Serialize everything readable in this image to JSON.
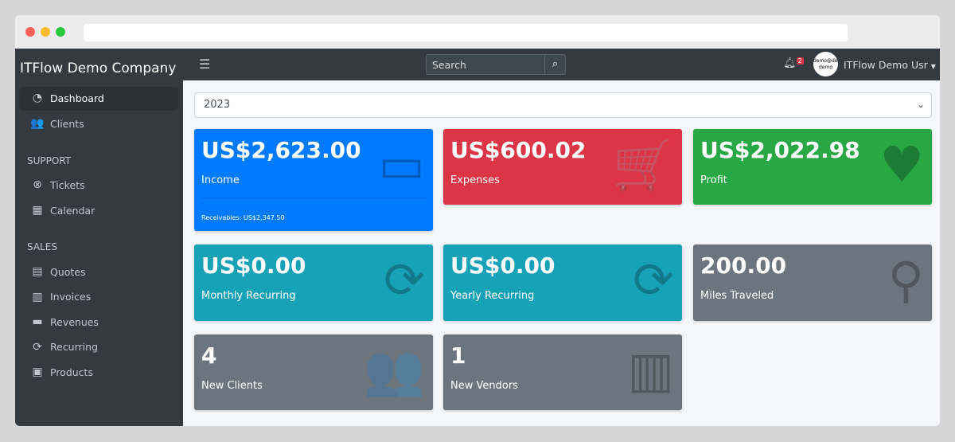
{
  "sidebar": {
    "brand": "ITFlow Demo Company",
    "items": [
      {
        "label": "Dashboard",
        "icon": "tachometer-icon",
        "glyph": "◔"
      },
      {
        "label": "Clients",
        "icon": "users-icon",
        "glyph": "👥"
      }
    ],
    "support_header": "SUPPORT",
    "support": [
      {
        "label": "Tickets",
        "icon": "life-ring-icon",
        "glyph": "⊗"
      },
      {
        "label": "Calendar",
        "icon": "calendar-icon",
        "glyph": "▦"
      }
    ],
    "sales_header": "SALES",
    "sales": [
      {
        "label": "Quotes",
        "icon": "file-icon",
        "glyph": "▤"
      },
      {
        "label": "Invoices",
        "icon": "invoice-icon",
        "glyph": "▥"
      },
      {
        "label": "Revenues",
        "icon": "credit-card-icon",
        "glyph": "▬"
      },
      {
        "label": "Recurring",
        "icon": "sync-icon",
        "glyph": "⟳"
      },
      {
        "label": "Products",
        "icon": "box-icon",
        "glyph": "▣"
      }
    ]
  },
  "topbar": {
    "search_placeholder": "Search",
    "notifications": "2",
    "avatar_text": "demo@demo demo",
    "user": "ITFlow Demo Usr"
  },
  "year_select": "2023",
  "cards": [
    {
      "value": "US$2,623.00",
      "label": "Income",
      "footer": "Receivables: US$2,347.50",
      "color": "#007bff",
      "icon": "credit-card-icon",
      "glyph": "▭"
    },
    {
      "value": "US$600.02",
      "label": "Expenses",
      "color": "#dc3545",
      "icon": "shopping-cart-icon",
      "glyph": "🛒"
    },
    {
      "value": "US$2,022.98",
      "label": "Profit",
      "color": "#28a745",
      "icon": "heart-icon",
      "glyph": "♥"
    },
    {
      "value": "US$0.00",
      "label": "Monthly Recurring",
      "color": "#17a2b8",
      "icon": "sync-icon",
      "glyph": "⟳"
    },
    {
      "value": "US$0.00",
      "label": "Yearly Recurring",
      "color": "#17a2b8",
      "icon": "sync-icon",
      "glyph": "⟳"
    },
    {
      "value": "200.00",
      "label": "Miles Traveled",
      "color": "#6c757d",
      "icon": "route-icon",
      "glyph": "⚲"
    },
    {
      "value": "4",
      "label": "New Clients",
      "color": "#6c757d",
      "icon": "users-icon",
      "glyph": "👥"
    },
    {
      "value": "1",
      "label": "New Vendors",
      "color": "#6c757d",
      "icon": "building-icon",
      "glyph": "▥"
    }
  ]
}
